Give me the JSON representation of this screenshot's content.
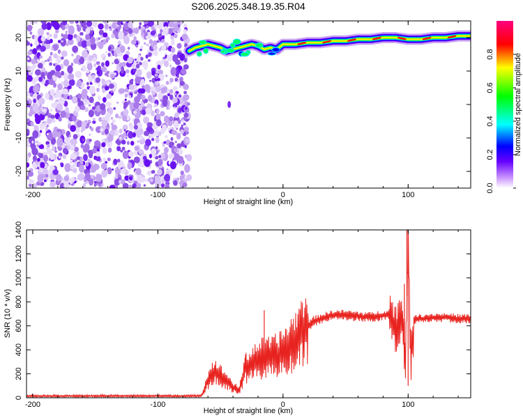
{
  "title": "S206.2025.348.19.35.R04",
  "chart_data": [
    {
      "type": "heatmap",
      "name": "spectrogram",
      "xlabel": "Height of straight line (km)",
      "ylabel": "Frequency (Hz)",
      "xlim": [
        -205,
        150
      ],
      "ylim": [
        -25,
        25
      ],
      "xticks": [
        -200,
        -100,
        0,
        100
      ],
      "yticks": [
        -20,
        -10,
        0,
        10,
        20
      ],
      "noise_region_x": [
        -205,
        -75
      ],
      "signal_ridge": {
        "x": [
          -75,
          -70,
          -65,
          -60,
          -55,
          -50,
          -45,
          -40,
          -35,
          -30,
          -25,
          -20,
          -15,
          -10,
          -5,
          0,
          10,
          20,
          30,
          40,
          50,
          60,
          70,
          80,
          90,
          100,
          110,
          120,
          130,
          140,
          150
        ],
        "freq_hz": [
          16,
          17,
          17.5,
          18,
          17.5,
          17,
          16,
          16.5,
          17,
          17.5,
          18,
          17.5,
          16.5,
          17,
          16.5,
          18,
          18,
          18.5,
          18.5,
          19,
          19,
          19.5,
          19.5,
          20,
          20,
          19.5,
          19.5,
          20,
          20,
          20.5,
          20.5
        ]
      },
      "colorbar": {
        "label": "Normalized spectral amplitude",
        "range": [
          0,
          1
        ],
        "ticks": [
          "0.0",
          "0.2",
          "0.4",
          "0.6",
          "0.8"
        ]
      }
    },
    {
      "type": "line",
      "name": "snr",
      "xlabel": "Height of straight line (km)",
      "ylabel": "SNR (10 * v/v)",
      "xlim": [
        -205,
        150
      ],
      "ylim": [
        0,
        1400
      ],
      "xticks": [
        -200,
        -100,
        0,
        100
      ],
      "yticks": [
        0,
        200,
        400,
        600,
        800,
        1000,
        1200,
        1400
      ],
      "color": "#e8231f",
      "series": [
        {
          "name": "SNR",
          "x": [
            -205,
            -150,
            -100,
            -70,
            -65,
            -60,
            -55,
            -50,
            -45,
            -40,
            -35,
            -30,
            -25,
            -20,
            -15,
            -10,
            -5,
            0,
            5,
            10,
            15,
            20,
            25,
            30,
            40,
            50,
            60,
            70,
            80,
            85,
            90,
            95,
            98,
            100,
            102,
            105,
            110,
            120,
            130,
            140,
            150
          ],
          "y": [
            15,
            15,
            15,
            15,
            20,
            150,
            220,
            180,
            140,
            90,
            60,
            250,
            280,
            320,
            330,
            330,
            350,
            380,
            430,
            480,
            550,
            600,
            640,
            660,
            690,
            690,
            680,
            670,
            690,
            700,
            560,
            700,
            300,
            1400,
            300,
            650,
            660,
            670,
            670,
            660,
            660
          ]
        }
      ],
      "spikes": [
        {
          "x": -15,
          "y": 730
        },
        {
          "x": -30,
          "y": 360
        },
        {
          "x": 99,
          "y": 1400
        },
        {
          "x": 97,
          "y": 950
        },
        {
          "x": 100,
          "y": 100
        }
      ]
    }
  ]
}
